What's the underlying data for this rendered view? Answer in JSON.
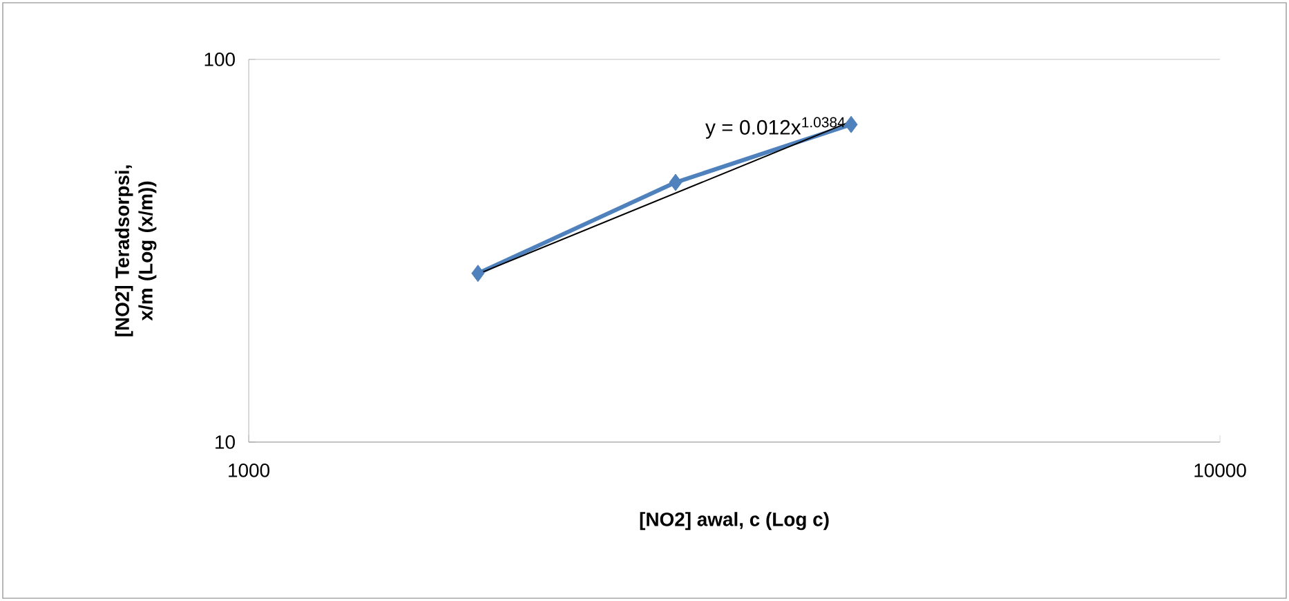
{
  "chart_data": {
    "type": "line",
    "xlabel": "[NO2] awal, c (Log c)",
    "ylabel": "[NO2] Teradsorpsi, x/m (Log (x/m))",
    "log": "xy",
    "grid": "y",
    "xlim": [
      1000,
      10000
    ],
    "xticks": [
      1000,
      10000
    ],
    "ylim": [
      10,
      100
    ],
    "yticks": [
      10,
      100
    ],
    "annotations": [
      "y = 0.012x$^{1.0384}$"
    ],
    "series": [
      {
        "color": "#4f81bd",
        "x": [
          1722,
          2751,
          4171
        ],
        "values": [
          27.6,
          47.7,
          67.6
        ],
        "marker": "diamond",
        "line_style": "solid"
      },
      {
        "type": "line",
        "color": "#000000",
        "x": [
          1722,
          4171
        ],
        "values": [
          27.5,
          68.9
        ],
        "marker": "none",
        "line_style": "solid"
      }
    ]
  }
}
